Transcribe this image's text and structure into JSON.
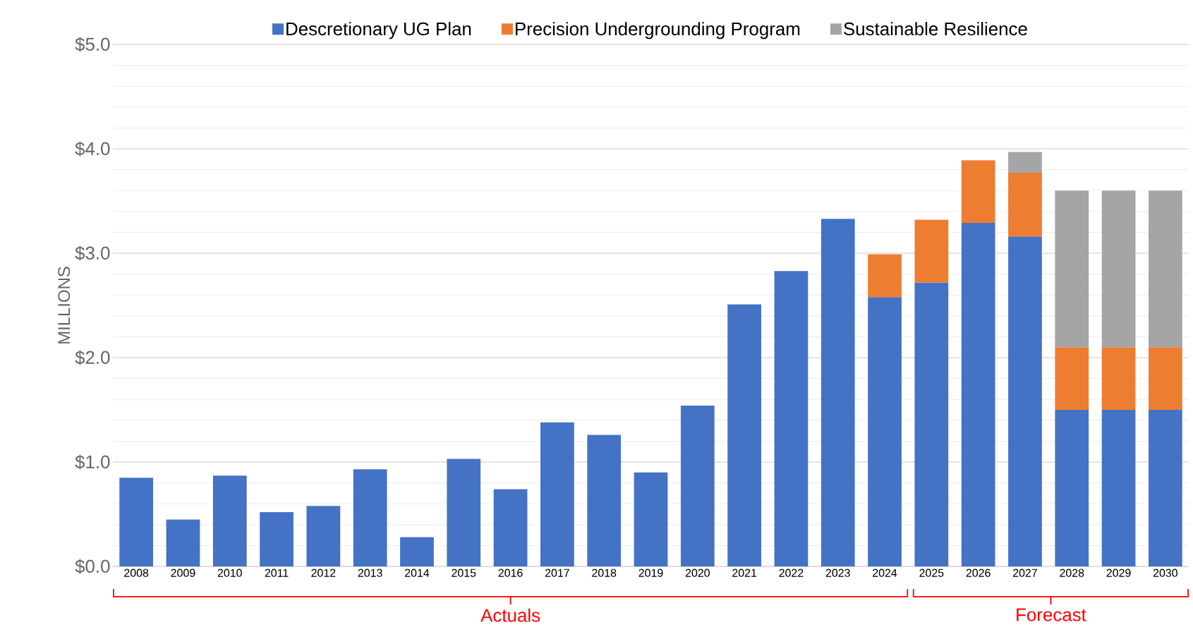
{
  "chart_data": {
    "type": "bar",
    "stacked": true,
    "ylabel": "MILLIONS",
    "categories": [
      "2008",
      "2009",
      "2010",
      "2011",
      "2012",
      "2013",
      "2014",
      "2015",
      "2016",
      "2017",
      "2018",
      "2019",
      "2020",
      "2021",
      "2022",
      "2023",
      "2024",
      "2025",
      "2026",
      "2027",
      "2028",
      "2029",
      "2030"
    ],
    "series": [
      {
        "name": "Descretionary UG Plan",
        "color": "#4472c4",
        "values": [
          0.85,
          0.45,
          0.87,
          0.52,
          0.58,
          0.93,
          0.28,
          1.03,
          0.74,
          1.38,
          1.26,
          0.9,
          1.54,
          2.51,
          2.83,
          3.33,
          2.58,
          2.72,
          3.29,
          3.16,
          1.5,
          1.5,
          1.5
        ]
      },
      {
        "name": "Precision Undergrounding Program",
        "color": "#ed7d31",
        "values": [
          null,
          null,
          null,
          null,
          null,
          null,
          null,
          null,
          null,
          null,
          null,
          null,
          null,
          null,
          null,
          null,
          0.41,
          0.6,
          0.6,
          0.61,
          0.6,
          0.6,
          0.6
        ]
      },
      {
        "name": "Sustainable Resilience",
        "color": "#a5a5a5",
        "values": [
          null,
          null,
          null,
          null,
          null,
          null,
          null,
          null,
          null,
          null,
          null,
          null,
          null,
          null,
          null,
          null,
          null,
          null,
          null,
          0.2,
          1.5,
          1.5,
          1.5
        ]
      }
    ],
    "ylim": [
      0,
      5
    ],
    "yticks": [
      {
        "value": 0,
        "label": "$0.0"
      },
      {
        "value": 1,
        "label": "$1.0"
      },
      {
        "value": 2,
        "label": "$2.0"
      },
      {
        "value": 3,
        "label": "$3.0"
      },
      {
        "value": 4,
        "label": "$4.0"
      },
      {
        "value": 5,
        "label": "$5.0"
      }
    ],
    "grid": "y",
    "legend": "top",
    "annotations": [
      "Actuals",
      "Forecast"
    ]
  }
}
